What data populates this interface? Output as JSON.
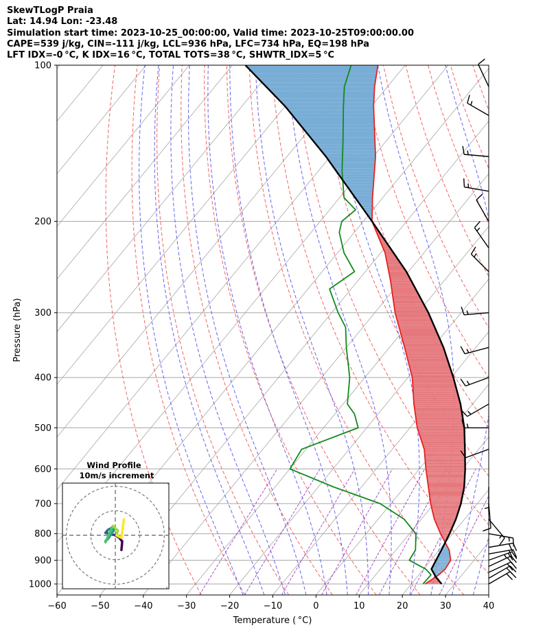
{
  "header": {
    "line1": "SkewTLogP Praia",
    "line2": "Lat: 14.94   Lon: -23.48",
    "line3": "Simulation start time: 2023-10-25_00:00:00, Valid time: 2023-10-25T09:00:00.00",
    "line4": "CAPE=539 j/kg, CIN=-111 j/kg, LCL=936 hPa, LFC=734 hPa, EQ=198 hPa",
    "line5": "LFT IDX=-0 °C, K IDX=16 °C, TOTAL TOTS=38 °C, SHWTR_IDX=5 °C"
  },
  "chart_data": {
    "type": "line",
    "subtype": "skew-T log-p diagram",
    "xlabel": "Temperature ( °C)",
    "ylabel": "Pressure (hPa)",
    "xlim": [
      -60,
      40
    ],
    "ylim": [
      1050,
      100
    ],
    "y_scale": "log",
    "x_ticks": [
      -60,
      -50,
      -40,
      -30,
      -20,
      -10,
      0,
      10,
      20,
      30,
      40
    ],
    "x_tick_labels": [
      "−60",
      "−50",
      "−40",
      "−30",
      "−20",
      "−10",
      "0",
      "10",
      "20",
      "30",
      "40"
    ],
    "y_ticks": [
      100,
      200,
      300,
      400,
      500,
      600,
      700,
      800,
      900,
      1000
    ],
    "y_tick_labels": [
      "100",
      "200",
      "300",
      "400",
      "500",
      "600",
      "700",
      "800",
      "900",
      "1000"
    ],
    "grid": true,
    "series": [
      {
        "role": "temperature",
        "color": "#e8201c",
        "pressure": [
          1000,
          960,
          936,
          900,
          860,
          800,
          750,
          700,
          650,
          600,
          550,
          500,
          450,
          400,
          350,
          300,
          260,
          230,
          200,
          180,
          150,
          120,
          110,
          100
        ],
        "values": [
          23.2,
          24.6,
          25.0,
          24.6,
          22.3,
          17.2,
          13.0,
          9.2,
          5.5,
          1.5,
          -2.6,
          -8.3,
          -13.6,
          -19.0,
          -26.5,
          -35.3,
          -42.5,
          -49.0,
          -58.0,
          -62.4,
          -69.5,
          -79.5,
          -83.0,
          -86.3
        ]
      },
      {
        "role": "dewpoint",
        "color": "#118a1a",
        "pressure": [
          1000,
          960,
          936,
          900,
          860,
          800,
          750,
          700,
          650,
          600,
          550,
          500,
          470,
          450,
          400,
          350,
          320,
          300,
          270,
          250,
          230,
          210,
          200,
          190,
          180,
          160,
          140,
          120,
          110,
          100
        ],
        "values": [
          22.7,
          22.8,
          20.5,
          15.0,
          14.5,
          11.5,
          6.0,
          -2.5,
          -16.5,
          -30.0,
          -31.0,
          -22.0,
          -25.5,
          -29.0,
          -33.5,
          -40.0,
          -44.0,
          -48.5,
          -55.0,
          -52.5,
          -58.5,
          -63.5,
          -65.0,
          -64.0,
          -69.0,
          -74.5,
          -80.0,
          -86.5,
          -90.0,
          -92.5
        ]
      },
      {
        "role": "parcel",
        "color": "#000000",
        "pressure": [
          1000,
          970,
          936,
          900,
          860,
          800,
          750,
          700,
          650,
          600,
          550,
          500,
          450,
          400,
          350,
          300,
          250,
          200,
          150,
          120,
          100
        ],
        "values": [
          27.0,
          24.4,
          21.8,
          21.2,
          20.5,
          19.3,
          18.0,
          16.2,
          13.8,
          10.6,
          6.8,
          2.6,
          -2.8,
          -9.5,
          -17.5,
          -27.6,
          -40.5,
          -58.0,
          -81.0,
          -100.0,
          -117.0
        ]
      }
    ],
    "shaded_regions": [
      {
        "role": "CAPE",
        "color": "#e5787c"
      },
      {
        "role": "CIN",
        "color": "#78add6"
      }
    ],
    "background_lines": [
      {
        "role": "isotherms",
        "color": "#a6a6a6"
      },
      {
        "role": "dry adiabats",
        "color": "#f06464"
      },
      {
        "role": "moist adiabats",
        "color": "#6464f0"
      },
      {
        "role": "mixing ratio",
        "color": "#a040c0"
      }
    ],
    "wind_barbs": [
      {
        "pressure": 1000,
        "speed_kt": 20,
        "direction_deg": 60
      },
      {
        "pressure": 975,
        "speed_kt": 20,
        "direction_deg": 60
      },
      {
        "pressure": 950,
        "speed_kt": 20,
        "direction_deg": 65
      },
      {
        "pressure": 925,
        "speed_kt": 20,
        "direction_deg": 65
      },
      {
        "pressure": 900,
        "speed_kt": 25,
        "direction_deg": 70
      },
      {
        "pressure": 875,
        "speed_kt": 20,
        "direction_deg": 80
      },
      {
        "pressure": 850,
        "speed_kt": 20,
        "direction_deg": 80
      },
      {
        "pressure": 800,
        "speed_kt": 15,
        "direction_deg": 100
      },
      {
        "pressure": 750,
        "speed_kt": 15,
        "direction_deg": 140
      },
      {
        "pressure": 700,
        "speed_kt": 10,
        "direction_deg": 175
      },
      {
        "pressure": 650,
        "speed_kt": 5,
        "direction_deg": 180
      },
      {
        "pressure": 550,
        "speed_kt": 10,
        "direction_deg": 250
      },
      {
        "pressure": 500,
        "speed_kt": 15,
        "direction_deg": 270
      },
      {
        "pressure": 450,
        "speed_kt": 15,
        "direction_deg": 240
      },
      {
        "pressure": 400,
        "speed_kt": 15,
        "direction_deg": 250
      },
      {
        "pressure": 350,
        "speed_kt": 15,
        "direction_deg": 255
      },
      {
        "pressure": 300,
        "speed_kt": 15,
        "direction_deg": 265
      },
      {
        "pressure": 250,
        "speed_kt": 15,
        "direction_deg": 315
      },
      {
        "pressure": 225,
        "speed_kt": 15,
        "direction_deg": 325
      },
      {
        "pressure": 200,
        "speed_kt": 10,
        "direction_deg": 330
      },
      {
        "pressure": 175,
        "speed_kt": 15,
        "direction_deg": 280
      },
      {
        "pressure": 150,
        "speed_kt": 15,
        "direction_deg": 275
      },
      {
        "pressure": 125,
        "speed_kt": 15,
        "direction_deg": 300
      },
      {
        "pressure": 110,
        "speed_kt": 10,
        "direction_deg": 335
      }
    ],
    "hodograph": {
      "title": "Wind Profile",
      "subtitle": "10m/s increment",
      "u": [
        2.5,
        2.7,
        2.8,
        1.6,
        0.0,
        -2.0,
        -4.0,
        -3.0,
        -1.5,
        -0.5,
        -3.0,
        -4.0,
        -4.0,
        -1.0,
        1.0,
        0.5,
        2.5,
        3.5
      ],
      "v": [
        -6.0,
        -4.0,
        -2.5,
        -1.0,
        0.0,
        0.5,
        1.0,
        2.2,
        3.0,
        2.2,
        -1.5,
        -2.3,
        -2.8,
        3.8,
        2.0,
        0.0,
        -1.0,
        6.5
      ],
      "rings": [
        10,
        20
      ],
      "colormap": "viridis"
    }
  }
}
